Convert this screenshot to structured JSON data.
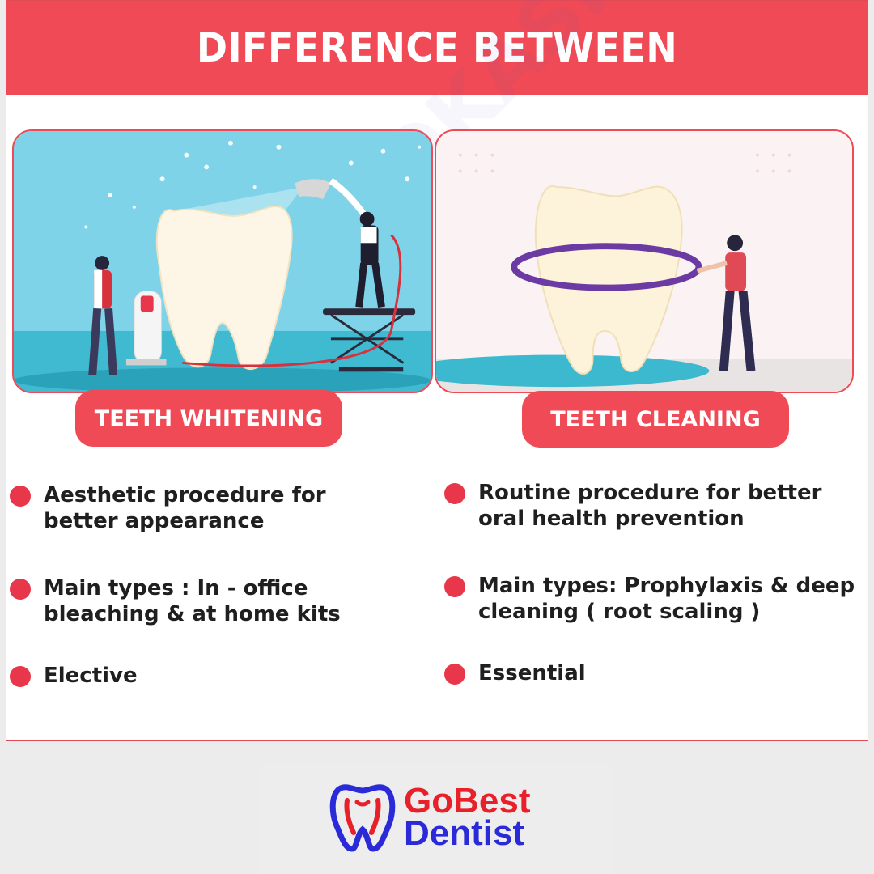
{
  "header": {
    "title": "DIFFERENCE BETWEEN"
  },
  "watermark": {
    "text": "DR. MOOKASHI DENTAL CLINIC"
  },
  "left": {
    "label": "TEETH WHITENING",
    "points": [
      "Aesthetic procedure for better appearance",
      "Main types : In - office bleaching & at home kits",
      "Elective"
    ]
  },
  "right": {
    "label": "TEETH CLEANING",
    "points": [
      "Routine procedure for better oral health prevention",
      "Main types: Prophylaxis & deep cleaning ( root scaling )",
      "Essential"
    ]
  },
  "logo": {
    "line1": "GoBest",
    "line2": "Dentist"
  },
  "colors": {
    "accent": "#ef4a55",
    "bullet": "#e8374a",
    "logo_red": "#e8202a",
    "logo_blue": "#2a2ad8"
  }
}
